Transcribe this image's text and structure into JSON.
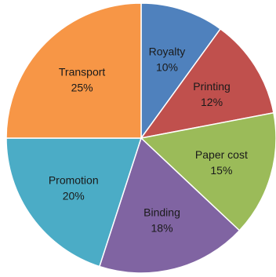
{
  "chart_data": {
    "type": "pie",
    "title": "",
    "legend": "none",
    "start": "top",
    "direction": "clockwise",
    "slices": [
      {
        "label": "Royalty",
        "value": 10,
        "value_label": "10%",
        "color": "#4f81bd"
      },
      {
        "label": "Printing",
        "value": 12,
        "value_label": "12%",
        "color": "#c0504d"
      },
      {
        "label": "Paper cost",
        "value": 15,
        "value_label": "15%",
        "color": "#9bbb59"
      },
      {
        "label": "Binding",
        "value": 18,
        "value_label": "18%",
        "color": "#8064a2"
      },
      {
        "label": "Promotion",
        "value": 20,
        "value_label": "20%",
        "color": "#4bacc6"
      },
      {
        "label": "Transport",
        "value": 25,
        "value_label": "25%",
        "color": "#f79646"
      }
    ]
  }
}
